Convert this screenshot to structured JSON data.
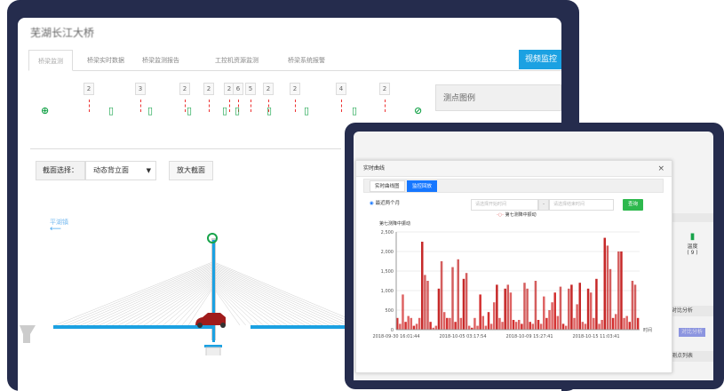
{
  "app": {
    "title": "芜湖长江大桥",
    "tabs": [
      "桥梁监测",
      "桥梁实时数据",
      "桥梁监测报告",
      "工控机资源监测",
      "桥梁系统报警"
    ],
    "video_button": "视频监控",
    "legend_title": "测点图例"
  },
  "markers": [
    "2",
    "3",
    "2",
    "2",
    "2",
    "6",
    "5",
    "2",
    "2",
    "4",
    "2"
  ],
  "section": {
    "label": "截面选择：",
    "selected": "动态背立面",
    "zoom_button": "放大截面",
    "direction": "平湖镇"
  },
  "side_panel": {
    "sensor_label": "温度",
    "sensor_count": "( 9 )",
    "compare_title": "对比分析",
    "compare_button": "对比分析",
    "list_title": "测点列表"
  },
  "modal": {
    "title": "实时曲线",
    "close": "×",
    "tabs": [
      "实时曲线图",
      "监控回放"
    ],
    "radio_label": "最近两个月",
    "start_placeholder": "请选择开始时间",
    "dash": "-",
    "end_placeholder": "请选择结束时间",
    "query_button": "查询"
  },
  "colors": {
    "accent": "#1ba1e2",
    "frame": "#252c4d",
    "sensor": "#17a34a",
    "series": "#c62828",
    "query": "#2db84d"
  },
  "chart_data": {
    "type": "bar",
    "legend": "第七测降中振动",
    "ylabel": "第七测降中振动",
    "xlabel": "时间",
    "ylim": [
      0,
      2500
    ],
    "yticks": [
      "0",
      "500",
      "1,000",
      "1,500",
      "2,000",
      "2,500"
    ],
    "xticks": [
      "2018-09-30 16:01:44",
      "2018-10-05 03:17:54",
      "2018-10-09 15:27:41",
      "2018-10-15 11:03:41"
    ],
    "values": [
      300,
      150,
      900,
      200,
      350,
      300,
      100,
      150,
      300,
      2250,
      1400,
      1250,
      200,
      50,
      100,
      1050,
      1750,
      450,
      300,
      300,
      1600,
      200,
      1800,
      300,
      1300,
      1450,
      100,
      50,
      300,
      100,
      900,
      350,
      100,
      450,
      150,
      700,
      1150,
      300,
      200,
      1050,
      1150,
      950,
      250,
      200,
      250,
      150,
      1200,
      1050,
      200,
      150,
      1250,
      250,
      150,
      850,
      300,
      500,
      700,
      950,
      350,
      1100,
      150,
      100,
      1050,
      1150,
      300,
      650,
      1200,
      200,
      150,
      1050,
      950,
      300,
      1300,
      150,
      250,
      2350,
      2150,
      1550,
      300,
      400,
      2000,
      2000,
      300,
      350,
      200,
      1250,
      1150,
      300
    ]
  }
}
